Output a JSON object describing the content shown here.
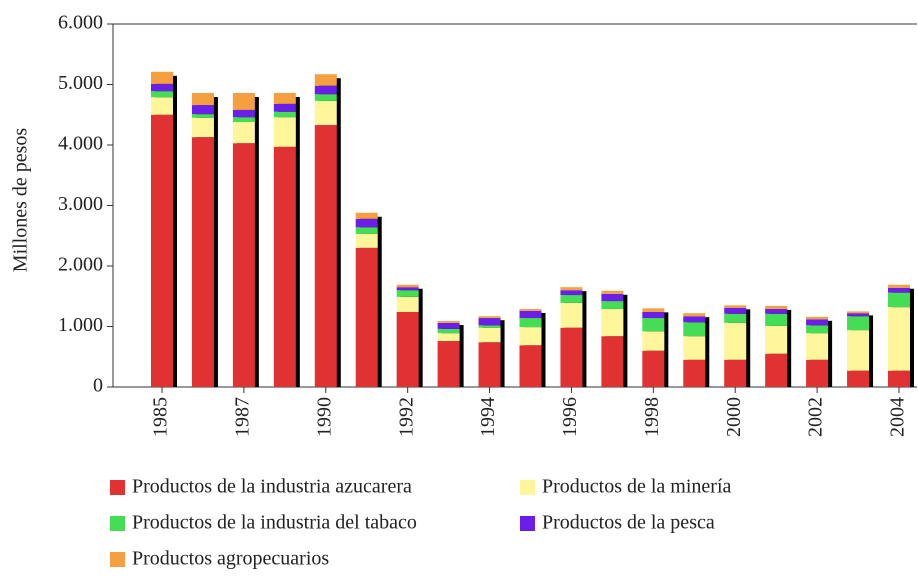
{
  "chart_data": {
    "type": "stacked-bar",
    "y_label": "Millones de pesos",
    "categories": [
      "1985",
      null,
      "1987",
      null,
      "1990",
      null,
      "1992",
      null,
      "1994",
      null,
      "1996",
      null,
      "1998",
      null,
      "2000",
      null,
      "2002",
      null,
      "2004"
    ],
    "series": [
      {
        "name": "Productos de la industria azucarera",
        "color": "#e03232",
        "values": [
          4500,
          4130,
          4030,
          3970,
          4330,
          2300,
          1240,
          760,
          740,
          690,
          980,
          840,
          600,
          450,
          450,
          550,
          450,
          270,
          270
        ]
      },
      {
        "name": "Productos de la minería",
        "color": "#fff59a",
        "values": [
          290,
          320,
          350,
          490,
          400,
          230,
          250,
          130,
          240,
          300,
          410,
          450,
          320,
          390,
          610,
          460,
          440,
          670,
          1050
        ]
      },
      {
        "name": "Productos de la industria del tabaco",
        "color": "#44dd55",
        "values": [
          100,
          60,
          80,
          90,
          110,
          110,
          110,
          70,
          40,
          150,
          130,
          130,
          220,
          230,
          150,
          200,
          130,
          230,
          240
        ]
      },
      {
        "name": "Productos de la pesca",
        "color": "#6a1ee8",
        "values": [
          120,
          150,
          120,
          130,
          140,
          140,
          50,
          100,
          120,
          120,
          80,
          120,
          100,
          100,
          100,
          80,
          100,
          50,
          80
        ]
      },
      {
        "name": "Productos agropecuarios",
        "color": "#f5a040",
        "values": [
          200,
          200,
          280,
          180,
          190,
          100,
          40,
          30,
          30,
          30,
          50,
          50,
          60,
          50,
          40,
          50,
          40,
          30,
          50
        ]
      }
    ],
    "ylim": [
      0,
      6000
    ],
    "yticks": [
      0,
      {
        "value": 1000,
        "label": "1.000"
      },
      {
        "value": 2000,
        "label": "2.000"
      },
      {
        "value": 3000,
        "label": "3.000"
      },
      {
        "value": 4000,
        "label": "4.000"
      },
      {
        "value": 5000,
        "label": "5.000"
      },
      {
        "value": 6000,
        "label": "6.000"
      }
    ]
  }
}
